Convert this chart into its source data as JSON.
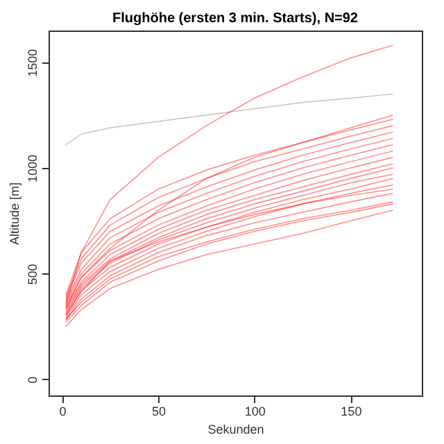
{
  "chart_data": {
    "type": "line",
    "title": "Flughöhe (ersten 3 min. Starts), N=92",
    "xlabel": "Sekunden",
    "ylabel": "Altitude [m]",
    "x": [
      2,
      10,
      25,
      50,
      75,
      100,
      125,
      150,
      172
    ],
    "xlim": [
      -7,
      187
    ],
    "xticks": [
      0,
      50,
      100,
      150
    ],
    "ylim": [
      -76,
      1650
    ],
    "yticks": [
      0,
      500,
      1000,
      1500
    ],
    "grid": false,
    "marker": "none",
    "line_style": "solid",
    "series": [
      {
        "color": "#808080",
        "values": [
          1110,
          1160,
          1190,
          1220,
          1250,
          1280,
          1310,
          1330,
          1350
        ]
      },
      {
        "color": "#ff0000",
        "values": [
          355,
          600,
          850,
          1050,
          1200,
          1330,
          1430,
          1520,
          1580
        ]
      },
      {
        "color": "#ff0000",
        "values": [
          250,
          330,
          430,
          520,
          590,
          640,
          690,
          750,
          800
        ]
      },
      {
        "color": "#ff0000",
        "values": [
          270,
          350,
          460,
          560,
          640,
          700,
          750,
          790,
          830
        ]
      },
      {
        "color": "#ff0000",
        "values": [
          280,
          380,
          490,
          600,
          680,
          740,
          790,
          840,
          880
        ]
      },
      {
        "color": "#ff0000",
        "values": [
          290,
          400,
          510,
          620,
          700,
          770,
          830,
          880,
          920
        ]
      },
      {
        "color": "#ff0000",
        "values": [
          300,
          420,
          530,
          640,
          720,
          790,
          850,
          900,
          950
        ]
      },
      {
        "color": "#ff0000",
        "values": [
          310,
          430,
          550,
          660,
          740,
          810,
          870,
          930,
          970
        ]
      },
      {
        "color": "#ff0000",
        "values": [
          320,
          440,
          560,
          670,
          760,
          830,
          890,
          950,
          1000
        ]
      },
      {
        "color": "#ff0000",
        "values": [
          330,
          450,
          570,
          690,
          780,
          850,
          910,
          970,
          1020
        ]
      },
      {
        "color": "#ff0000",
        "values": [
          340,
          460,
          590,
          710,
          800,
          870,
          940,
          1000,
          1050
        ]
      },
      {
        "color": "#ff0000",
        "values": [
          350,
          480,
          610,
          730,
          820,
          900,
          970,
          1030,
          1080
        ]
      },
      {
        "color": "#ff0000",
        "values": [
          360,
          500,
          640,
          760,
          850,
          930,
          1000,
          1060,
          1110
        ]
      },
      {
        "color": "#ff0000",
        "values": [
          370,
          520,
          670,
          790,
          880,
          960,
          1030,
          1090,
          1140
        ]
      },
      {
        "color": "#ff0000",
        "values": [
          380,
          550,
          700,
          820,
          910,
          990,
          1060,
          1120,
          1170
        ]
      },
      {
        "color": "#ff0000",
        "values": [
          390,
          570,
          730,
          860,
          950,
          1030,
          1090,
          1150,
          1200
        ]
      },
      {
        "color": "#ff0000",
        "values": [
          400,
          600,
          760,
          900,
          990,
          1060,
          1120,
          1180,
          1230
        ]
      },
      {
        "color": "#ff0000",
        "values": [
          336,
          485,
          620,
          800,
          950,
          1050,
          1120,
          1190,
          1250
        ]
      },
      {
        "color": "#ff0000",
        "values": [
          304,
          415,
          560,
          650,
          720,
          780,
          830,
          870,
          900
        ]
      },
      {
        "color": "#ff0000",
        "values": [
          284,
          365,
          475,
          580,
          650,
          710,
          760,
          800,
          840
        ]
      }
    ]
  }
}
